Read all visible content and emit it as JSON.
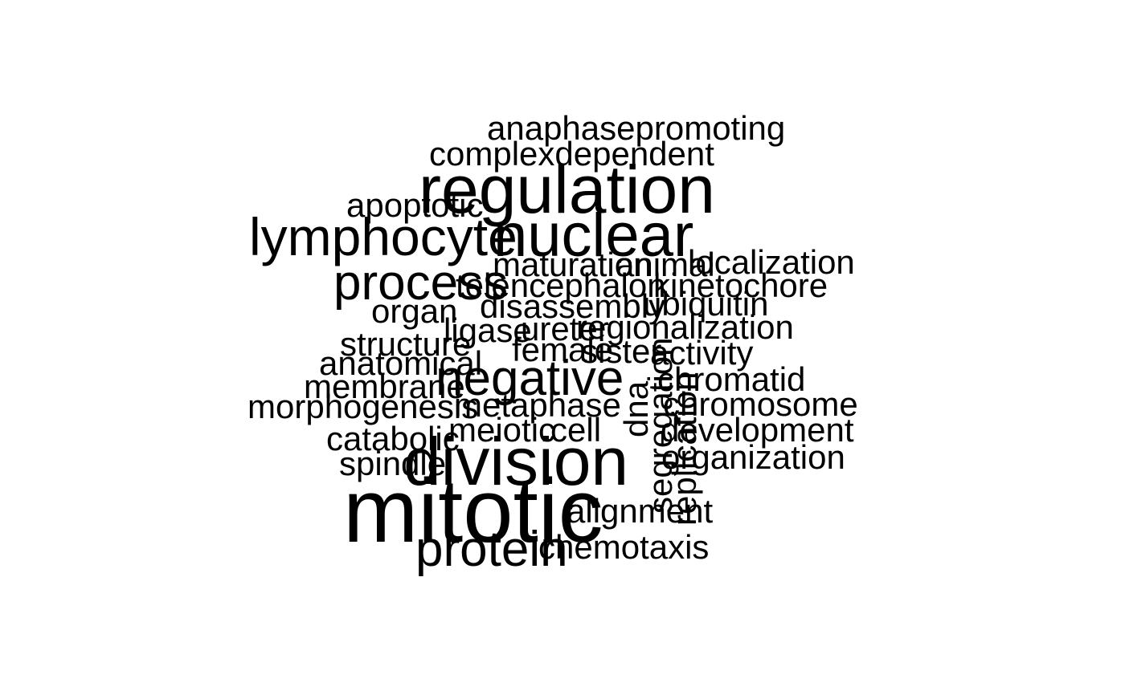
{
  "text_color": "#000000",
  "background_color": "#ffffff",
  "words": [
    {
      "id": "mitotic",
      "text": "mitotic"
    },
    {
      "id": "division",
      "text": "division"
    },
    {
      "id": "regulation",
      "text": "regulation"
    },
    {
      "id": "nuclear",
      "text": "nuclear"
    },
    {
      "id": "lymphocyte",
      "text": "lymphocyte"
    },
    {
      "id": "negative",
      "text": "negative"
    },
    {
      "id": "process",
      "text": "process"
    },
    {
      "id": "protein",
      "text": "protein"
    },
    {
      "id": "anaphasepromoting",
      "text": "anaphasepromoting"
    },
    {
      "id": "complexdependent",
      "text": "complexdependent"
    },
    {
      "id": "apoptotic",
      "text": "apoptotic"
    },
    {
      "id": "maturation",
      "text": "maturation"
    },
    {
      "id": "animal",
      "text": "animal"
    },
    {
      "id": "localization",
      "text": "localization"
    },
    {
      "id": "telencephalon",
      "text": "telencephalon"
    },
    {
      "id": "kinetochore",
      "text": "kinetochore"
    },
    {
      "id": "organ",
      "text": "organ"
    },
    {
      "id": "disassembly",
      "text": "disassembly"
    },
    {
      "id": "ubiquitin",
      "text": "ubiquitin"
    },
    {
      "id": "ligase",
      "text": "ligase"
    },
    {
      "id": "ureter",
      "text": "ureter"
    },
    {
      "id": "regionalization",
      "text": "regionalization"
    },
    {
      "id": "structure",
      "text": "structure"
    },
    {
      "id": "female",
      "text": "female"
    },
    {
      "id": "sister",
      "text": "sister"
    },
    {
      "id": "activity",
      "text": "activity"
    },
    {
      "id": "anatomical",
      "text": "anatomical"
    },
    {
      "id": "chromatid",
      "text": "chromatid"
    },
    {
      "id": "membrane",
      "text": "membrane"
    },
    {
      "id": "morphogenesis",
      "text": "morphogenesis"
    },
    {
      "id": "metaphase",
      "text": "metaphase"
    },
    {
      "id": "chromosome",
      "text": "chromosome"
    },
    {
      "id": "meiotic",
      "text": "meiotic"
    },
    {
      "id": "cell",
      "text": "cell"
    },
    {
      "id": "development",
      "text": "development"
    },
    {
      "id": "catabolic",
      "text": "catabolic"
    },
    {
      "id": "organization",
      "text": "organization"
    },
    {
      "id": "spindle",
      "text": "spindle"
    },
    {
      "id": "alignment",
      "text": "alignment"
    },
    {
      "id": "chemotaxis",
      "text": "chemotaxis"
    },
    {
      "id": "dna",
      "text": "dna"
    },
    {
      "id": "segregation",
      "text": "segregation"
    },
    {
      "id": "replication",
      "text": "replication"
    }
  ]
}
